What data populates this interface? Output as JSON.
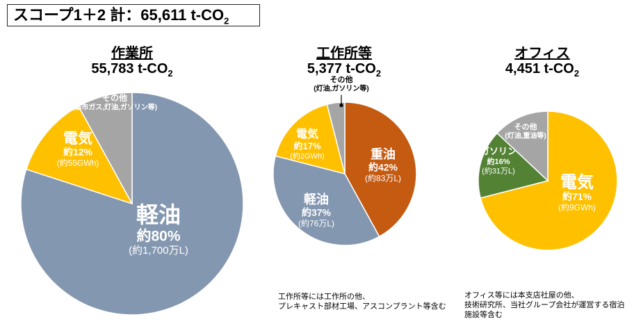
{
  "header": {
    "title": "スコープ1＋2 計：65,611 t-CO",
    "sub": "2"
  },
  "chart_data": [
    {
      "type": "pie",
      "title": "作業所",
      "total": "55,783 t-CO",
      "total_sub": "2",
      "slices": [
        {
          "key": "keiyu",
          "name": "軽油",
          "value": 80,
          "percent_label": "約80%",
          "amount_label": "(約1,700万L)",
          "color": "#8497b0"
        },
        {
          "key": "denki",
          "name": "電気",
          "value": 12,
          "percent_label": "約12%",
          "amount_label": "(約55GWh)",
          "color": "#ffc000"
        },
        {
          "key": "sonota",
          "name": "その他",
          "value": 8,
          "percent_label": "",
          "amount_label": "(都市ガス,灯油,ガソリン等)",
          "color": "#a5a5a5"
        }
      ]
    },
    {
      "type": "pie",
      "title": "工作所等",
      "total": "5,377 t-CO",
      "total_sub": "2",
      "slices": [
        {
          "key": "juyu",
          "name": "重油",
          "value": 42,
          "percent_label": "約42%",
          "amount_label": "(約83万L)",
          "color": "#c55a11"
        },
        {
          "key": "keiyu",
          "name": "軽油",
          "value": 37,
          "percent_label": "約37%",
          "amount_label": "(約76万L)",
          "color": "#8497b0"
        },
        {
          "key": "denki",
          "name": "電気",
          "value": 17,
          "percent_label": "約17%",
          "amount_label": "(約2GWh)",
          "color": "#ffc000"
        },
        {
          "key": "sonota",
          "name": "その他",
          "value": 4,
          "percent_label": "",
          "amount_label": "(灯油,ガソリン等)",
          "color": "#a5a5a5"
        }
      ],
      "footnote": "工作所等には工作所の他、\nプレキャスト部材工場、アスコンプラント等含む"
    },
    {
      "type": "pie",
      "title": "オフィス",
      "total": "4,451 t-CO",
      "total_sub": "2",
      "slices": [
        {
          "key": "denki",
          "name": "電気",
          "value": 71,
          "percent_label": "約71%",
          "amount_label": "(約9GWh)",
          "color": "#ffc000"
        },
        {
          "key": "gasoline",
          "name": "ガソリン",
          "value": 16,
          "percent_label": "約16%",
          "amount_label": "(約31万L)",
          "color": "#548235"
        },
        {
          "key": "sonota",
          "name": "その他",
          "value": 13,
          "percent_label": "",
          "amount_label": "(灯油,重油等)",
          "color": "#a5a5a5"
        }
      ],
      "footnote": "オフィス等には本支店社屋の他、\n技術研究所、当社グループ会社が運営する宿泊\n施設等含む"
    }
  ]
}
